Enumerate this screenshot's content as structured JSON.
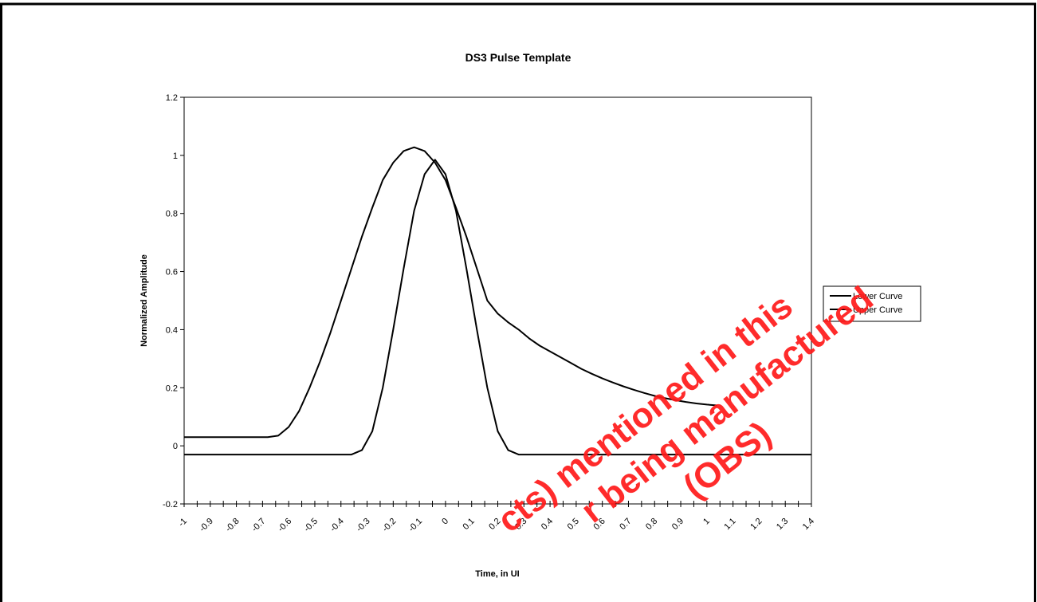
{
  "chart_data": {
    "type": "line",
    "title": "DS3 Pulse Template",
    "xlabel": "Time, in UI",
    "ylabel": "Normalized Amplitude",
    "xlim": [
      -1,
      1.4
    ],
    "ylim": [
      -0.2,
      1.2
    ],
    "grid": false,
    "legend_position": "right",
    "x_ticks": [
      "-1",
      "-0.9",
      "-0.8",
      "-0.7",
      "-0.6",
      "-0.5",
      "-0.4",
      "-0.3",
      "-0.2",
      "-0.1",
      "0",
      "0.1",
      "0.2",
      "0.3",
      "0.4",
      "0.5",
      "0.6",
      "0.7",
      "0.8",
      "0.9",
      "1",
      "1.1",
      "1.2",
      "1.3",
      "1.4"
    ],
    "y_ticks": [
      "-0.2",
      "0",
      "0.2",
      "0.4",
      "0.6",
      "0.8",
      "1",
      "1.2"
    ],
    "series": [
      {
        "name": "Lower Curve",
        "color": "#000000",
        "points": [
          [
            -1,
            -0.03
          ],
          [
            -0.9,
            -0.03
          ],
          [
            -0.8,
            -0.03
          ],
          [
            -0.7,
            -0.03
          ],
          [
            -0.6,
            -0.03
          ],
          [
            -0.5,
            -0.03
          ],
          [
            -0.4,
            -0.03
          ],
          [
            -0.36,
            -0.03
          ],
          [
            -0.32,
            -0.015
          ],
          [
            -0.28,
            0.05
          ],
          [
            -0.24,
            0.2
          ],
          [
            -0.2,
            0.4
          ],
          [
            -0.16,
            0.61
          ],
          [
            -0.12,
            0.81
          ],
          [
            -0.08,
            0.935
          ],
          [
            -0.04,
            0.985
          ],
          [
            0,
            0.935
          ],
          [
            0.04,
            0.81
          ],
          [
            0.08,
            0.61
          ],
          [
            0.12,
            0.4
          ],
          [
            0.16,
            0.2
          ],
          [
            0.2,
            0.05
          ],
          [
            0.24,
            -0.015
          ],
          [
            0.28,
            -0.03
          ],
          [
            0.4,
            -0.03
          ],
          [
            0.6,
            -0.03
          ],
          [
            0.8,
            -0.03
          ],
          [
            1.0,
            -0.03
          ],
          [
            1.2,
            -0.03
          ],
          [
            1.4,
            -0.03
          ]
        ]
      },
      {
        "name": "Upper Curve",
        "color": "#000000",
        "points": [
          [
            -1,
            0.03
          ],
          [
            -0.9,
            0.03
          ],
          [
            -0.8,
            0.03
          ],
          [
            -0.7,
            0.03
          ],
          [
            -0.68,
            0.03
          ],
          [
            -0.64,
            0.035
          ],
          [
            -0.6,
            0.065
          ],
          [
            -0.56,
            0.12
          ],
          [
            -0.52,
            0.2
          ],
          [
            -0.48,
            0.29
          ],
          [
            -0.44,
            0.39
          ],
          [
            -0.4,
            0.5
          ],
          [
            -0.36,
            0.61
          ],
          [
            -0.32,
            0.72
          ],
          [
            -0.28,
            0.82
          ],
          [
            -0.24,
            0.915
          ],
          [
            -0.2,
            0.975
          ],
          [
            -0.16,
            1.015
          ],
          [
            -0.12,
            1.028
          ],
          [
            -0.08,
            1.015
          ],
          [
            -0.04,
            0.975
          ],
          [
            0,
            0.915
          ],
          [
            0.04,
            0.82
          ],
          [
            0.08,
            0.72
          ],
          [
            0.12,
            0.61
          ],
          [
            0.16,
            0.5
          ],
          [
            0.2,
            0.455
          ],
          [
            0.24,
            0.425
          ],
          [
            0.28,
            0.4
          ],
          [
            0.32,
            0.37
          ],
          [
            0.36,
            0.345
          ],
          [
            0.4,
            0.325
          ],
          [
            0.44,
            0.305
          ],
          [
            0.48,
            0.285
          ],
          [
            0.52,
            0.265
          ],
          [
            0.56,
            0.248
          ],
          [
            0.6,
            0.232
          ],
          [
            0.64,
            0.218
          ],
          [
            0.68,
            0.205
          ],
          [
            0.72,
            0.193
          ],
          [
            0.76,
            0.182
          ],
          [
            0.8,
            0.172
          ],
          [
            0.84,
            0.164
          ],
          [
            0.88,
            0.157
          ],
          [
            0.92,
            0.151
          ],
          [
            0.96,
            0.146
          ],
          [
            1.0,
            0.142
          ],
          [
            1.04,
            0.139
          ]
        ]
      }
    ]
  },
  "watermark": {
    "lines": [
      "cts) mentioned in this",
      "r being manufactured",
      "(OBS)"
    ]
  }
}
